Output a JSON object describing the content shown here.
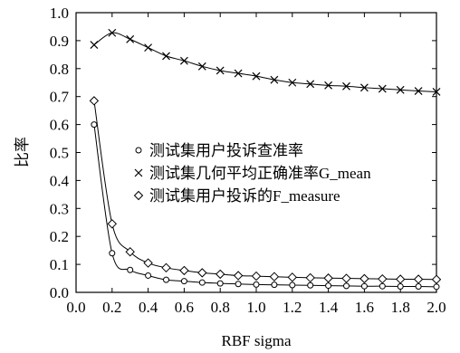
{
  "chart_data": {
    "type": "line",
    "xlabel": "RBF sigma",
    "ylabel": "比率",
    "xlim": [
      0.0,
      2.0
    ],
    "ylim": [
      0.0,
      1.0
    ],
    "x_ticks": [
      "0.0",
      "0.2",
      "0.4",
      "0.6",
      "0.8",
      "1.0",
      "1.2",
      "1.4",
      "1.6",
      "1.8",
      "2.0"
    ],
    "y_ticks": [
      "0.0",
      "0.1",
      "0.2",
      "0.3",
      "0.4",
      "0.5",
      "0.6",
      "0.7",
      "0.8",
      "0.9",
      "1.0"
    ],
    "grid": false,
    "legend_position": "center-right",
    "x": [
      0.1,
      0.2,
      0.3,
      0.4,
      0.5,
      0.6,
      0.7,
      0.8,
      0.9,
      1.0,
      1.1,
      1.2,
      1.3,
      1.4,
      1.5,
      1.6,
      1.7,
      1.8,
      1.9,
      2.0
    ],
    "series": [
      {
        "name": "测试集用户投诉查准率",
        "marker": "circle",
        "values": [
          0.6,
          0.14,
          0.08,
          0.06,
          0.045,
          0.04,
          0.035,
          0.032,
          0.03,
          0.028,
          0.027,
          0.026,
          0.025,
          0.024,
          0.023,
          0.022,
          0.022,
          0.021,
          0.021,
          0.02
        ]
      },
      {
        "name": "测试集几何平均正确准率G_mean",
        "marker": "cross",
        "values": [
          0.885,
          0.928,
          0.905,
          0.875,
          0.845,
          0.828,
          0.808,
          0.793,
          0.783,
          0.773,
          0.76,
          0.75,
          0.745,
          0.74,
          0.737,
          0.732,
          0.728,
          0.724,
          0.72,
          0.717
        ]
      },
      {
        "name": "测试集用户投诉的F_measure",
        "marker": "diamond",
        "values": [
          0.685,
          0.245,
          0.145,
          0.105,
          0.088,
          0.078,
          0.07,
          0.065,
          0.06,
          0.058,
          0.056,
          0.054,
          0.052,
          0.051,
          0.05,
          0.049,
          0.048,
          0.047,
          0.047,
          0.046
        ]
      }
    ]
  }
}
